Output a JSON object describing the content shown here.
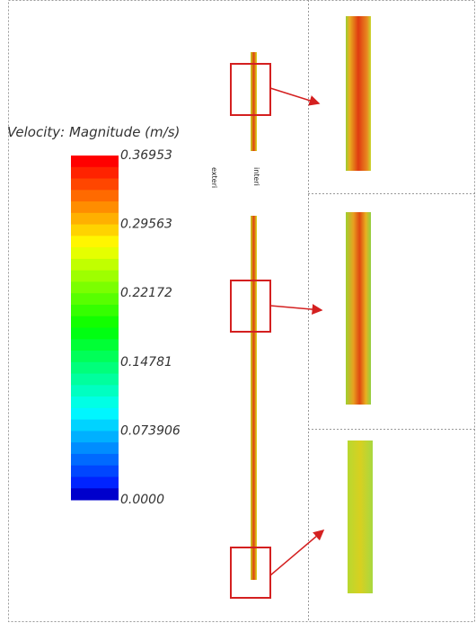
{
  "legend": {
    "title": "Velocity: Magnitude (m/s)",
    "ticks": [
      "0.36953",
      "0.29563",
      "0.22172",
      "0.14781",
      "0.073906",
      "0.0000"
    ]
  },
  "labels": [
    "exteri",
    "interi"
  ]
}
